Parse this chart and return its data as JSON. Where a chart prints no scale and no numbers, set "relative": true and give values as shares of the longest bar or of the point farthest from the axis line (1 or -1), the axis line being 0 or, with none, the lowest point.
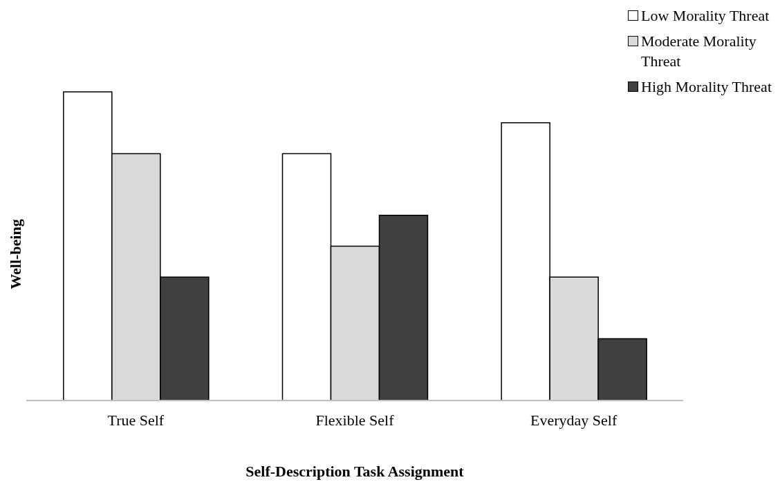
{
  "chart_data": {
    "type": "bar",
    "relative": true,
    "xlabel": "Self-Description Task Assignment",
    "ylabel": "Well-being",
    "categories": [
      "True Self",
      "Flexible Self",
      "Everyday Self"
    ],
    "legend": "top right",
    "grid": false,
    "series": [
      {
        "name": "Low Morality Threat",
        "color": "#ffffff",
        "values": [
          1,
          0.8,
          0.9
        ]
      },
      {
        "name": "Moderate Morality Threat",
        "color": "#d9d9d9",
        "values": [
          0.8,
          0.5,
          0.4
        ]
      },
      {
        "name": "High Morality Threat",
        "color": "#404040",
        "values": [
          0.4,
          0.6,
          0.2
        ]
      }
    ]
  }
}
